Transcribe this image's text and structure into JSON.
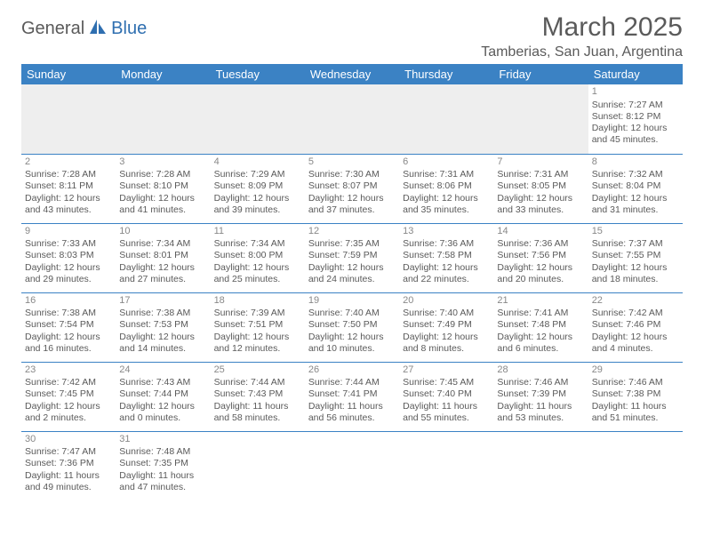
{
  "logo": {
    "part1": "General",
    "part2": "Blue"
  },
  "title": "March 2025",
  "location": "Tamberias, San Juan, Argentina",
  "colors": {
    "headerBlue": "#3b82c4",
    "textGrey": "#5a5a5a",
    "emptyBg": "#eeeeee",
    "white": "#ffffff"
  },
  "weekdays": [
    "Sunday",
    "Monday",
    "Tuesday",
    "Wednesday",
    "Thursday",
    "Friday",
    "Saturday"
  ],
  "weeks": [
    [
      null,
      null,
      null,
      null,
      null,
      null,
      {
        "n": "1",
        "sr": "Sunrise: 7:27 AM",
        "ss": "Sunset: 8:12 PM",
        "d1": "Daylight: 12 hours",
        "d2": "and 45 minutes."
      }
    ],
    [
      {
        "n": "2",
        "sr": "Sunrise: 7:28 AM",
        "ss": "Sunset: 8:11 PM",
        "d1": "Daylight: 12 hours",
        "d2": "and 43 minutes."
      },
      {
        "n": "3",
        "sr": "Sunrise: 7:28 AM",
        "ss": "Sunset: 8:10 PM",
        "d1": "Daylight: 12 hours",
        "d2": "and 41 minutes."
      },
      {
        "n": "4",
        "sr": "Sunrise: 7:29 AM",
        "ss": "Sunset: 8:09 PM",
        "d1": "Daylight: 12 hours",
        "d2": "and 39 minutes."
      },
      {
        "n": "5",
        "sr": "Sunrise: 7:30 AM",
        "ss": "Sunset: 8:07 PM",
        "d1": "Daylight: 12 hours",
        "d2": "and 37 minutes."
      },
      {
        "n": "6",
        "sr": "Sunrise: 7:31 AM",
        "ss": "Sunset: 8:06 PM",
        "d1": "Daylight: 12 hours",
        "d2": "and 35 minutes."
      },
      {
        "n": "7",
        "sr": "Sunrise: 7:31 AM",
        "ss": "Sunset: 8:05 PM",
        "d1": "Daylight: 12 hours",
        "d2": "and 33 minutes."
      },
      {
        "n": "8",
        "sr": "Sunrise: 7:32 AM",
        "ss": "Sunset: 8:04 PM",
        "d1": "Daylight: 12 hours",
        "d2": "and 31 minutes."
      }
    ],
    [
      {
        "n": "9",
        "sr": "Sunrise: 7:33 AM",
        "ss": "Sunset: 8:03 PM",
        "d1": "Daylight: 12 hours",
        "d2": "and 29 minutes."
      },
      {
        "n": "10",
        "sr": "Sunrise: 7:34 AM",
        "ss": "Sunset: 8:01 PM",
        "d1": "Daylight: 12 hours",
        "d2": "and 27 minutes."
      },
      {
        "n": "11",
        "sr": "Sunrise: 7:34 AM",
        "ss": "Sunset: 8:00 PM",
        "d1": "Daylight: 12 hours",
        "d2": "and 25 minutes."
      },
      {
        "n": "12",
        "sr": "Sunrise: 7:35 AM",
        "ss": "Sunset: 7:59 PM",
        "d1": "Daylight: 12 hours",
        "d2": "and 24 minutes."
      },
      {
        "n": "13",
        "sr": "Sunrise: 7:36 AM",
        "ss": "Sunset: 7:58 PM",
        "d1": "Daylight: 12 hours",
        "d2": "and 22 minutes."
      },
      {
        "n": "14",
        "sr": "Sunrise: 7:36 AM",
        "ss": "Sunset: 7:56 PM",
        "d1": "Daylight: 12 hours",
        "d2": "and 20 minutes."
      },
      {
        "n": "15",
        "sr": "Sunrise: 7:37 AM",
        "ss": "Sunset: 7:55 PM",
        "d1": "Daylight: 12 hours",
        "d2": "and 18 minutes."
      }
    ],
    [
      {
        "n": "16",
        "sr": "Sunrise: 7:38 AM",
        "ss": "Sunset: 7:54 PM",
        "d1": "Daylight: 12 hours",
        "d2": "and 16 minutes."
      },
      {
        "n": "17",
        "sr": "Sunrise: 7:38 AM",
        "ss": "Sunset: 7:53 PM",
        "d1": "Daylight: 12 hours",
        "d2": "and 14 minutes."
      },
      {
        "n": "18",
        "sr": "Sunrise: 7:39 AM",
        "ss": "Sunset: 7:51 PM",
        "d1": "Daylight: 12 hours",
        "d2": "and 12 minutes."
      },
      {
        "n": "19",
        "sr": "Sunrise: 7:40 AM",
        "ss": "Sunset: 7:50 PM",
        "d1": "Daylight: 12 hours",
        "d2": "and 10 minutes."
      },
      {
        "n": "20",
        "sr": "Sunrise: 7:40 AM",
        "ss": "Sunset: 7:49 PM",
        "d1": "Daylight: 12 hours",
        "d2": "and 8 minutes."
      },
      {
        "n": "21",
        "sr": "Sunrise: 7:41 AM",
        "ss": "Sunset: 7:48 PM",
        "d1": "Daylight: 12 hours",
        "d2": "and 6 minutes."
      },
      {
        "n": "22",
        "sr": "Sunrise: 7:42 AM",
        "ss": "Sunset: 7:46 PM",
        "d1": "Daylight: 12 hours",
        "d2": "and 4 minutes."
      }
    ],
    [
      {
        "n": "23",
        "sr": "Sunrise: 7:42 AM",
        "ss": "Sunset: 7:45 PM",
        "d1": "Daylight: 12 hours",
        "d2": "and 2 minutes."
      },
      {
        "n": "24",
        "sr": "Sunrise: 7:43 AM",
        "ss": "Sunset: 7:44 PM",
        "d1": "Daylight: 12 hours",
        "d2": "and 0 minutes."
      },
      {
        "n": "25",
        "sr": "Sunrise: 7:44 AM",
        "ss": "Sunset: 7:43 PM",
        "d1": "Daylight: 11 hours",
        "d2": "and 58 minutes."
      },
      {
        "n": "26",
        "sr": "Sunrise: 7:44 AM",
        "ss": "Sunset: 7:41 PM",
        "d1": "Daylight: 11 hours",
        "d2": "and 56 minutes."
      },
      {
        "n": "27",
        "sr": "Sunrise: 7:45 AM",
        "ss": "Sunset: 7:40 PM",
        "d1": "Daylight: 11 hours",
        "d2": "and 55 minutes."
      },
      {
        "n": "28",
        "sr": "Sunrise: 7:46 AM",
        "ss": "Sunset: 7:39 PM",
        "d1": "Daylight: 11 hours",
        "d2": "and 53 minutes."
      },
      {
        "n": "29",
        "sr": "Sunrise: 7:46 AM",
        "ss": "Sunset: 7:38 PM",
        "d1": "Daylight: 11 hours",
        "d2": "and 51 minutes."
      }
    ],
    [
      {
        "n": "30",
        "sr": "Sunrise: 7:47 AM",
        "ss": "Sunset: 7:36 PM",
        "d1": "Daylight: 11 hours",
        "d2": "and 49 minutes."
      },
      {
        "n": "31",
        "sr": "Sunrise: 7:48 AM",
        "ss": "Sunset: 7:35 PM",
        "d1": "Daylight: 11 hours",
        "d2": "and 47 minutes."
      },
      null,
      null,
      null,
      null,
      null
    ]
  ]
}
